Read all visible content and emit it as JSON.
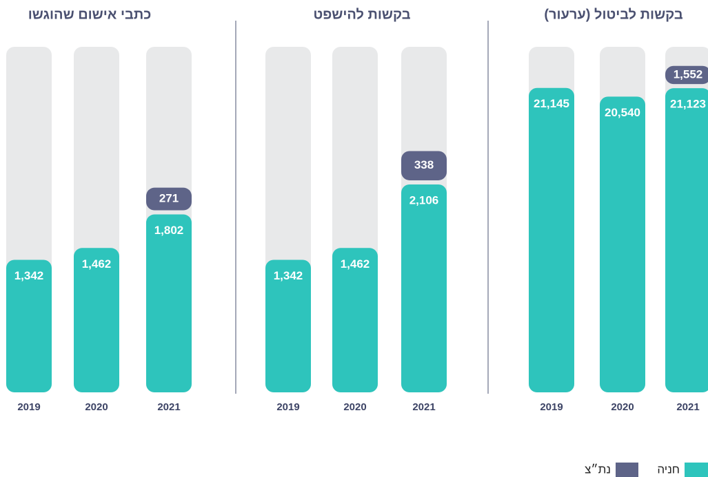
{
  "chart_data": [
    {
      "type": "bar",
      "stacked": true,
      "title": "כתבי אישום שהוגשו",
      "categories": [
        "2019",
        "2020",
        "2021"
      ],
      "ylim": [
        0,
        3500
      ],
      "series": [
        {
          "name": "חניה",
          "color": "#2ec4bc",
          "values": [
            1342,
            1462,
            1802
          ],
          "value_labels": [
            "1,342",
            "1,462",
            "1,802"
          ]
        },
        {
          "name": "נת״צ",
          "color": "#5e6488",
          "values": [
            null,
            null,
            271
          ],
          "value_labels": [
            null,
            null,
            "271"
          ]
        }
      ]
    },
    {
      "type": "bar",
      "stacked": true,
      "title": "בקשות להישפט",
      "categories": [
        "2019",
        "2020",
        "2021"
      ],
      "ylim": [
        0,
        3500
      ],
      "series": [
        {
          "name": "חניה",
          "color": "#2ec4bc",
          "values": [
            1342,
            1462,
            2106
          ],
          "value_labels": [
            "1,342",
            "1,462",
            "2,106"
          ]
        },
        {
          "name": "נת״צ",
          "color": "#5e6488",
          "values": [
            null,
            null,
            338
          ],
          "value_labels": [
            null,
            null,
            "338"
          ]
        }
      ]
    },
    {
      "type": "bar",
      "stacked": true,
      "title": "בקשות לביטול (ערעור)",
      "categories": [
        "2019",
        "2020",
        "2021"
      ],
      "ylim": [
        0,
        24000
      ],
      "series": [
        {
          "name": "חניה",
          "color": "#2ec4bc",
          "values": [
            21145,
            20540,
            21123
          ],
          "value_labels": [
            "21,145",
            "20,540",
            "21,123"
          ]
        },
        {
          "name": "נת״צ",
          "color": "#5e6488",
          "values": [
            null,
            null,
            1552
          ],
          "value_labels": [
            null,
            null,
            "1,552"
          ]
        }
      ]
    }
  ]
}
